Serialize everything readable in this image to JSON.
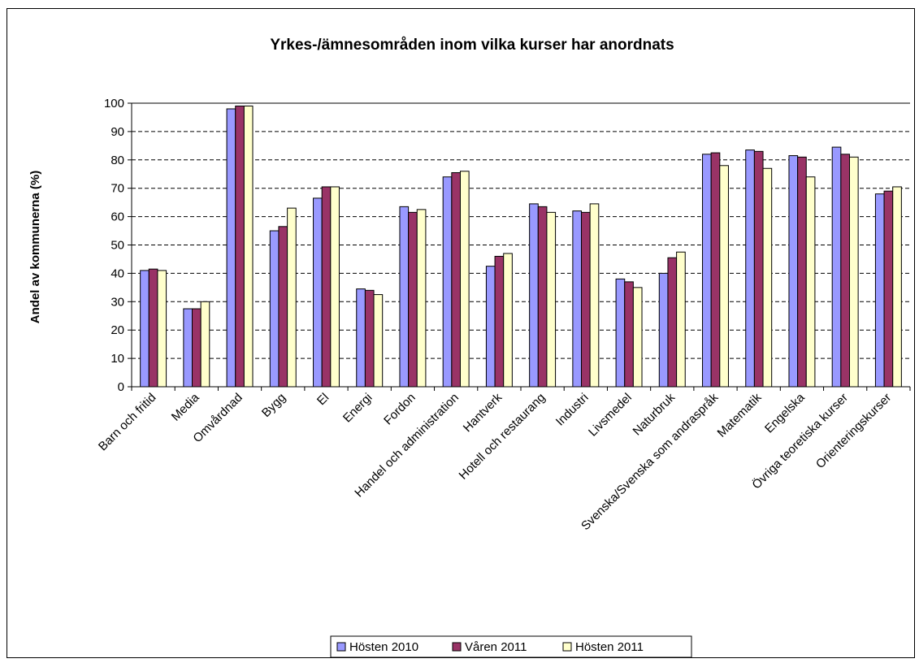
{
  "chart_data": {
    "type": "bar",
    "title": "Yrkes-/ämnesområden inom vilka kurser har anordnats",
    "xlabel": "",
    "ylabel": "Andel av kommunerna (%)",
    "ylim": [
      0,
      100
    ],
    "yticks": [
      0,
      10,
      20,
      30,
      40,
      50,
      60,
      70,
      80,
      90,
      100
    ],
    "grid": "horizontal dashed",
    "legend_position": "bottom",
    "categories": [
      "Barn och fritid",
      "Media",
      "Omvårdnad",
      "Bygg",
      "El",
      "Energi",
      "Fordon",
      "Handel och administration",
      "Hantverk",
      "Hotell och restaurang",
      "Industri",
      "Livsmedel",
      "Naturbruk",
      "Svenska/Svenska som andraspråk",
      "Matematik",
      "Engelska",
      "Övriga teoretiska kurser",
      "Orienteringskurser"
    ],
    "series": [
      {
        "name": "Hösten 2010",
        "color": "#9999FF",
        "values": [
          41,
          27.5,
          98,
          55,
          66.5,
          34.5,
          63.5,
          74,
          42.5,
          64.5,
          62,
          38,
          40,
          82,
          83.5,
          81.5,
          84.5,
          68
        ]
      },
      {
        "name": "Våren 2011",
        "color": "#993366",
        "values": [
          41.5,
          27.5,
          99,
          56.5,
          70.5,
          34,
          61.5,
          75.5,
          46,
          63.5,
          61.5,
          37,
          45.5,
          82.5,
          83,
          81,
          82,
          69
        ]
      },
      {
        "name": "Hösten 2011",
        "color": "#FFFFCC",
        "values": [
          41,
          30,
          99,
          63,
          70.5,
          32.5,
          62.5,
          76,
          47,
          61.5,
          64.5,
          35,
          47.5,
          78,
          77,
          74,
          81,
          70.5
        ]
      }
    ],
    "plot_background": "#ffffff",
    "bar_outline": "#000000"
  }
}
